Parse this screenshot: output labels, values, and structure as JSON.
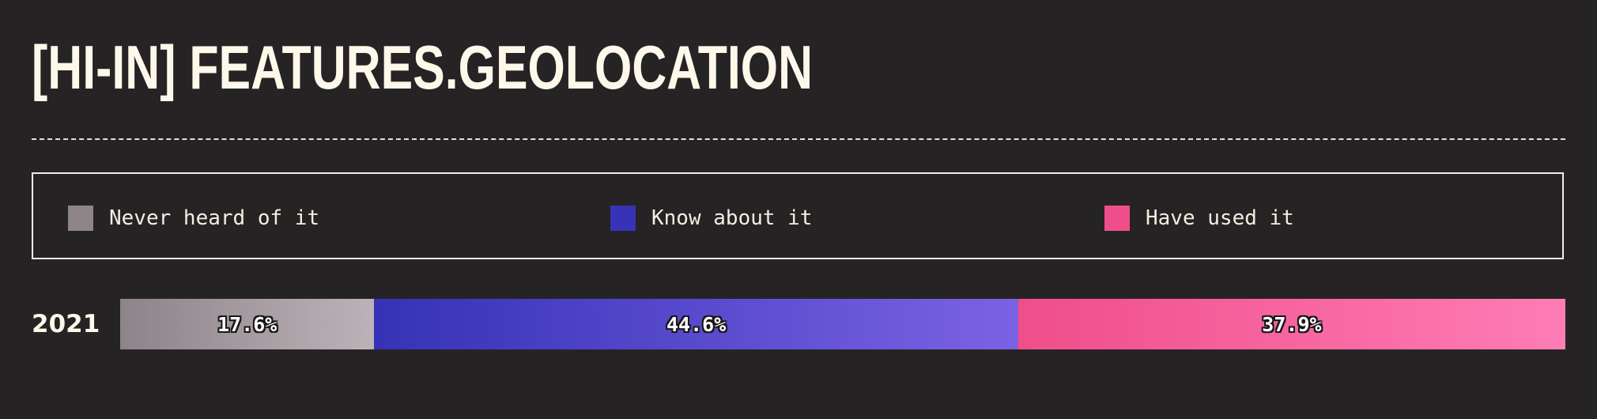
{
  "title": "[HI-IN] FEATURES.GEOLOCATION",
  "legend": [
    {
      "label": "Never heard of it",
      "color": "#8d8589"
    },
    {
      "label": "Know about it",
      "color": "#3832b8"
    },
    {
      "label": "Have used it",
      "color": "#ef4e8a"
    }
  ],
  "chart_data": {
    "type": "bar",
    "orientation": "horizontal",
    "stacked": true,
    "percent": true,
    "categories": [
      "2021"
    ],
    "series": [
      {
        "name": "Never heard of it",
        "values": [
          17.6
        ],
        "color": "#8d8589"
      },
      {
        "name": "Know about it",
        "values": [
          44.6
        ],
        "color": "#3832b8"
      },
      {
        "name": "Have used it",
        "values": [
          37.9
        ],
        "color": "#ef4e8a"
      }
    ],
    "data_labels": [
      "17.6%",
      "44.6%",
      "37.9%"
    ],
    "legend_position": "top",
    "grid": false
  }
}
